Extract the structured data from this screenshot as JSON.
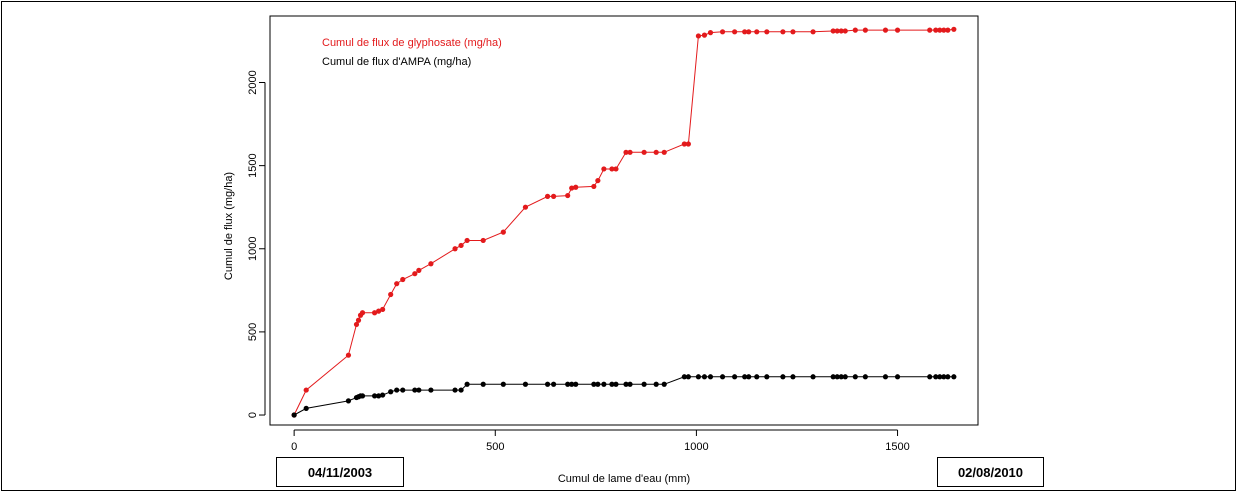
{
  "date_labels": {
    "start": "04/11/2003",
    "end": "02/08/2010"
  },
  "chart_data": {
    "type": "line",
    "title": "",
    "xlabel": "Cumul de lame d'eau (mm)",
    "ylabel": "Cumul de flux (mg/ha)",
    "xlim": [
      -60,
      1700
    ],
    "ylim": [
      -60,
      2400
    ],
    "xticks": [
      0,
      500,
      1000,
      1500
    ],
    "yticks": [
      0,
      500,
      1000,
      1500,
      2000
    ],
    "grid": false,
    "legend_position": "top-left",
    "series": [
      {
        "name": "Cumul de flux de glyphosate (mg/ha)",
        "color": "#e31a1c",
        "points": [
          [
            0,
            0
          ],
          [
            30,
            150
          ],
          [
            135,
            360
          ],
          [
            155,
            545
          ],
          [
            160,
            570
          ],
          [
            165,
            600
          ],
          [
            170,
            615
          ],
          [
            200,
            615
          ],
          [
            210,
            625
          ],
          [
            220,
            635
          ],
          [
            240,
            725
          ],
          [
            255,
            790
          ],
          [
            270,
            815
          ],
          [
            300,
            850
          ],
          [
            310,
            870
          ],
          [
            340,
            910
          ],
          [
            400,
            1000
          ],
          [
            415,
            1020
          ],
          [
            430,
            1050
          ],
          [
            470,
            1050
          ],
          [
            520,
            1100
          ],
          [
            575,
            1250
          ],
          [
            630,
            1315
          ],
          [
            645,
            1315
          ],
          [
            680,
            1320
          ],
          [
            690,
            1365
          ],
          [
            700,
            1370
          ],
          [
            745,
            1375
          ],
          [
            755,
            1410
          ],
          [
            770,
            1480
          ],
          [
            790,
            1480
          ],
          [
            800,
            1480
          ],
          [
            825,
            1580
          ],
          [
            835,
            1580
          ],
          [
            870,
            1580
          ],
          [
            900,
            1580
          ],
          [
            920,
            1580
          ],
          [
            970,
            1630
          ],
          [
            980,
            1630
          ],
          [
            1005,
            2280
          ],
          [
            1020,
            2285
          ],
          [
            1035,
            2300
          ],
          [
            1065,
            2305
          ],
          [
            1095,
            2305
          ],
          [
            1120,
            2305
          ],
          [
            1130,
            2305
          ],
          [
            1150,
            2305
          ],
          [
            1175,
            2305
          ],
          [
            1215,
            2305
          ],
          [
            1240,
            2305
          ],
          [
            1290,
            2305
          ],
          [
            1340,
            2310
          ],
          [
            1350,
            2310
          ],
          [
            1360,
            2310
          ],
          [
            1370,
            2310
          ],
          [
            1395,
            2315
          ],
          [
            1420,
            2315
          ],
          [
            1470,
            2315
          ],
          [
            1500,
            2315
          ],
          [
            1580,
            2315
          ],
          [
            1595,
            2315
          ],
          [
            1605,
            2315
          ],
          [
            1615,
            2315
          ],
          [
            1625,
            2315
          ],
          [
            1640,
            2320
          ]
        ]
      },
      {
        "name": "Cumul de flux d'AMPA (mg/ha)",
        "color": "#000000",
        "points": [
          [
            0,
            0
          ],
          [
            30,
            40
          ],
          [
            135,
            85
          ],
          [
            155,
            105
          ],
          [
            160,
            110
          ],
          [
            165,
            115
          ],
          [
            170,
            115
          ],
          [
            200,
            115
          ],
          [
            210,
            115
          ],
          [
            220,
            120
          ],
          [
            240,
            140
          ],
          [
            255,
            150
          ],
          [
            270,
            150
          ],
          [
            300,
            150
          ],
          [
            310,
            150
          ],
          [
            340,
            150
          ],
          [
            400,
            150
          ],
          [
            415,
            150
          ],
          [
            430,
            185
          ],
          [
            470,
            185
          ],
          [
            520,
            185
          ],
          [
            575,
            185
          ],
          [
            630,
            185
          ],
          [
            645,
            185
          ],
          [
            680,
            185
          ],
          [
            690,
            185
          ],
          [
            700,
            185
          ],
          [
            745,
            185
          ],
          [
            755,
            185
          ],
          [
            770,
            185
          ],
          [
            790,
            185
          ],
          [
            800,
            185
          ],
          [
            825,
            185
          ],
          [
            835,
            185
          ],
          [
            870,
            185
          ],
          [
            900,
            185
          ],
          [
            920,
            185
          ],
          [
            970,
            230
          ],
          [
            980,
            230
          ],
          [
            1005,
            230
          ],
          [
            1020,
            230
          ],
          [
            1035,
            230
          ],
          [
            1065,
            230
          ],
          [
            1095,
            230
          ],
          [
            1120,
            230
          ],
          [
            1130,
            230
          ],
          [
            1150,
            230
          ],
          [
            1175,
            230
          ],
          [
            1215,
            230
          ],
          [
            1240,
            230
          ],
          [
            1290,
            230
          ],
          [
            1340,
            230
          ],
          [
            1350,
            230
          ],
          [
            1360,
            230
          ],
          [
            1370,
            230
          ],
          [
            1395,
            230
          ],
          [
            1420,
            230
          ],
          [
            1470,
            230
          ],
          [
            1500,
            230
          ],
          [
            1580,
            230
          ],
          [
            1595,
            230
          ],
          [
            1605,
            230
          ],
          [
            1615,
            230
          ],
          [
            1625,
            230
          ],
          [
            1640,
            230
          ]
        ]
      }
    ]
  }
}
